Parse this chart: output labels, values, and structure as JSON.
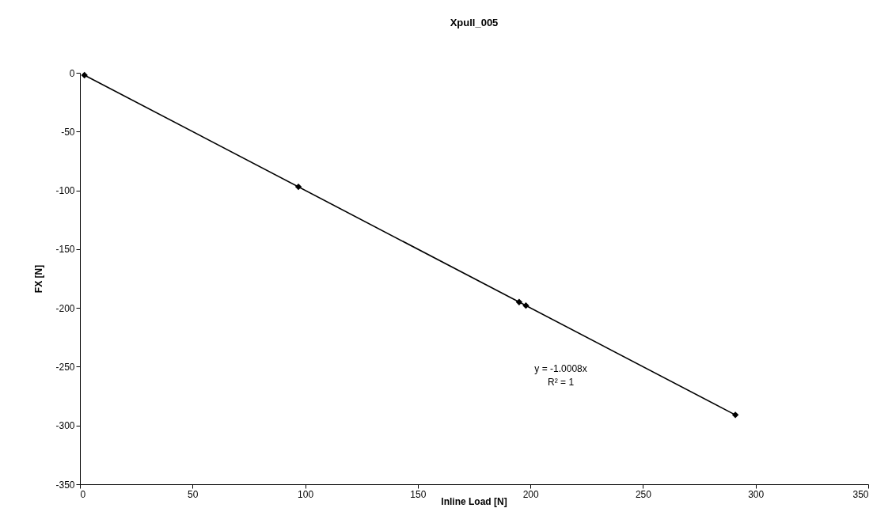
{
  "chart_data": {
    "type": "scatter",
    "title": "Xpull_005",
    "xlabel": "Inline Load [N]",
    "ylabel": "FX [N]",
    "xlim": [
      0,
      350
    ],
    "xticks": [
      0,
      50,
      100,
      150,
      200,
      250,
      300,
      350
    ],
    "ylim": [
      -350,
      0
    ],
    "yticks": [
      -350,
      -300,
      -250,
      -200,
      -150,
      -100,
      -50,
      0
    ],
    "grid": false,
    "series": [
      {
        "marker": "diamond",
        "color": "#000000",
        "x": [
          2,
          97,
          195,
          198,
          291
        ],
        "values": [
          -2,
          -97,
          -195,
          -198,
          -291
        ]
      },
      {
        "type": "line",
        "color": "#000000",
        "line_style": "solid",
        "x": [
          2,
          291
        ],
        "values": [
          -2,
          -291
        ]
      }
    ],
    "annotations": [
      "y = -1.0008x",
      "R² = 1"
    ]
  }
}
